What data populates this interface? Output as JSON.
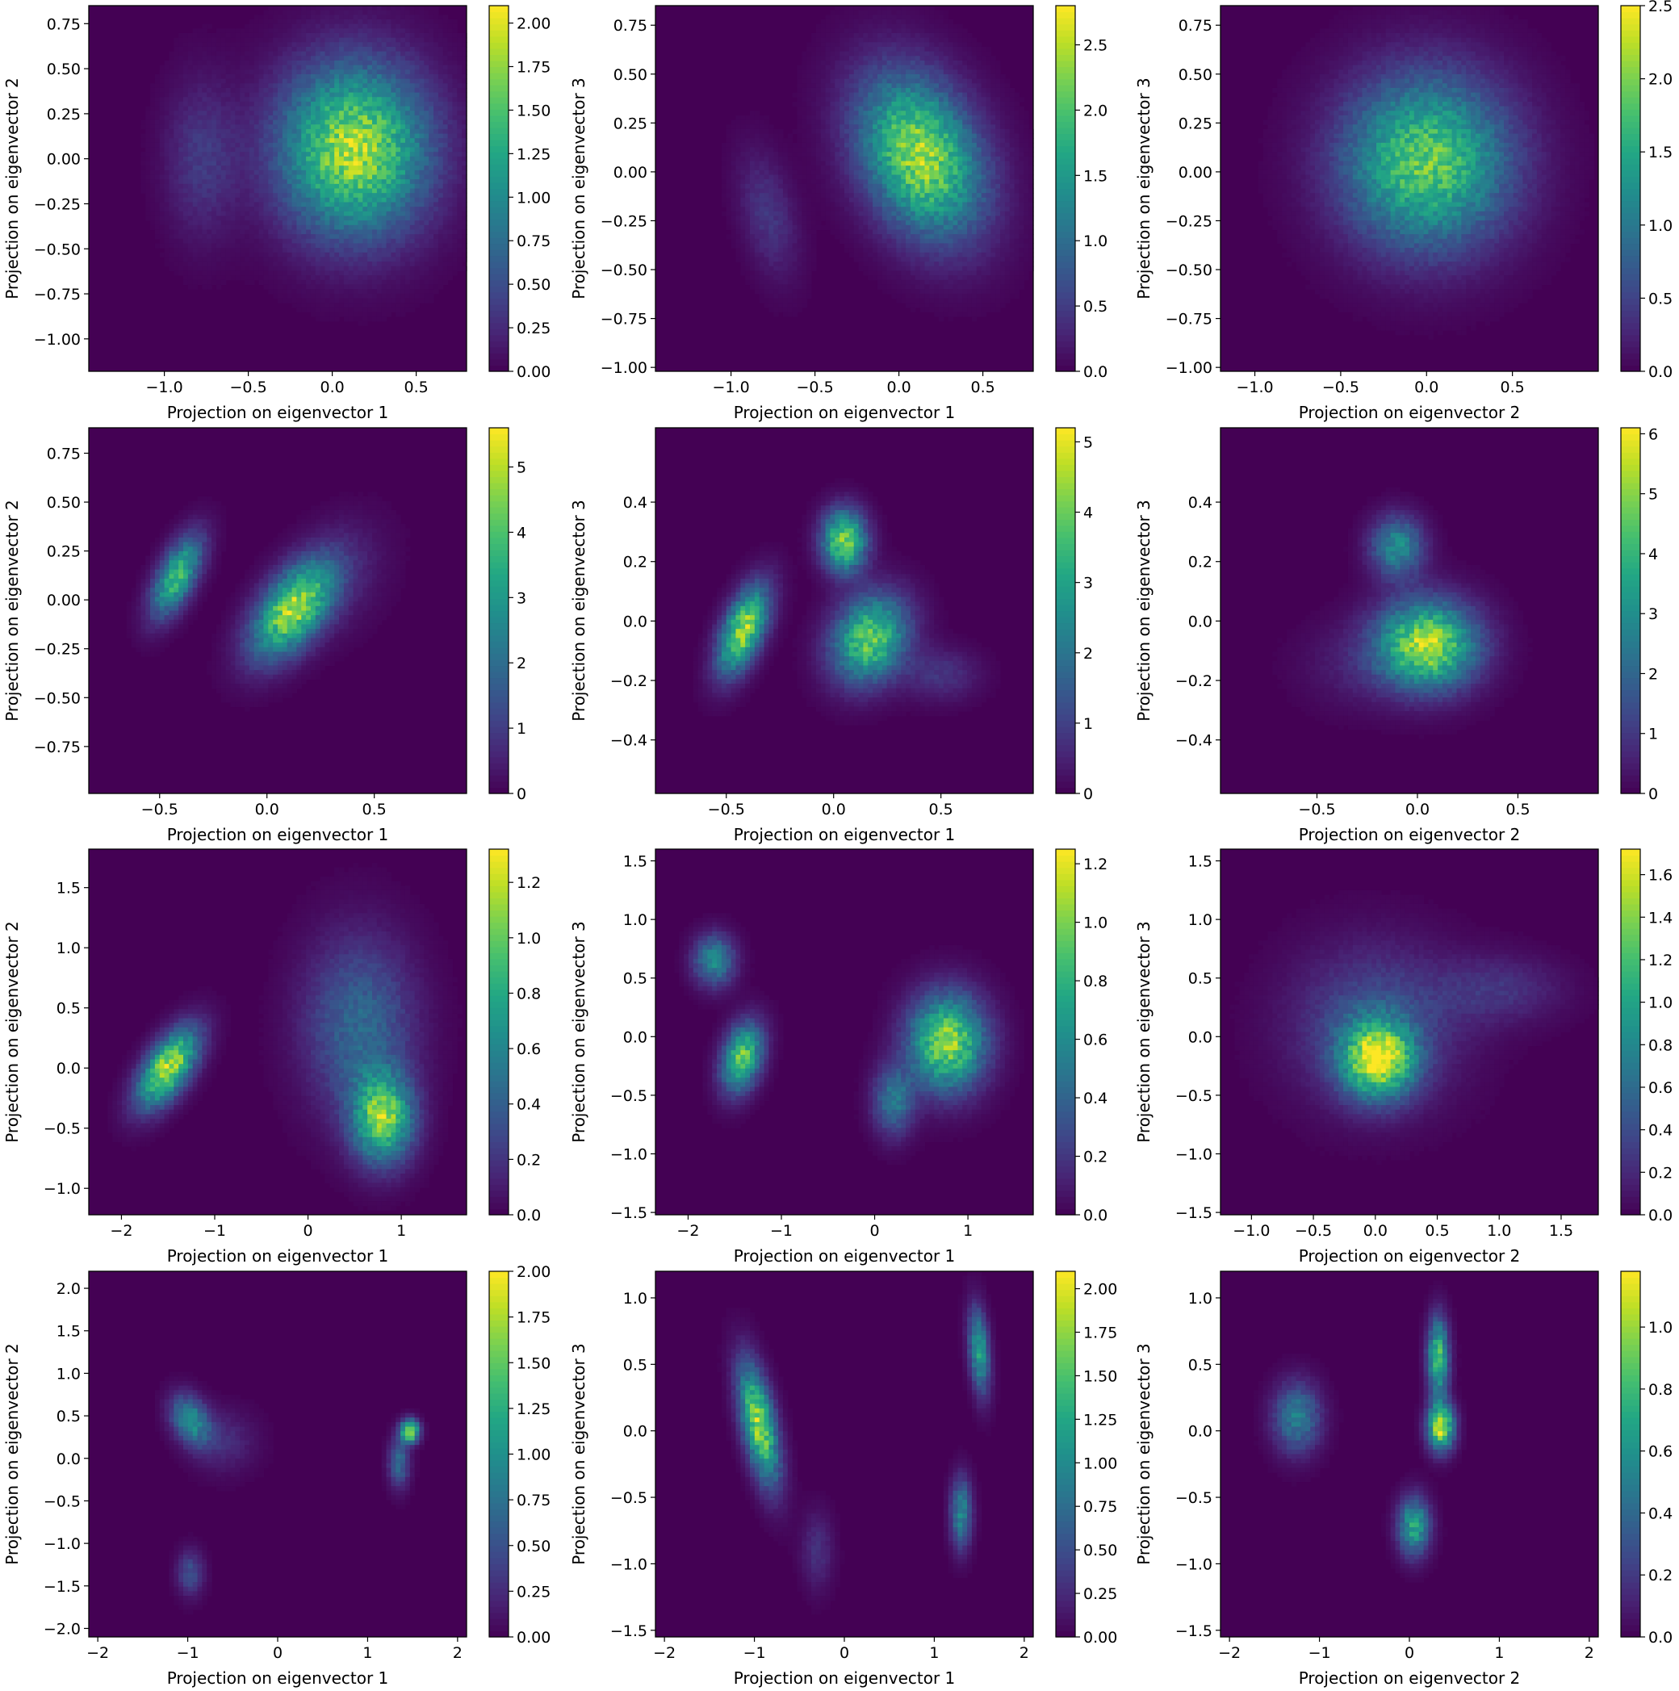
{
  "chart_data": [
    {
      "type": "heatmap",
      "xlabel": "Projection on eigenvector 1",
      "ylabel": "Projection on eigenvector 2",
      "xlim": [
        -1.45,
        0.8
      ],
      "ylim": [
        -1.18,
        0.85
      ],
      "xticks": [
        -1.0,
        -0.5,
        0.0,
        0.5
      ],
      "yticks": [
        -1.0,
        -0.75,
        -0.5,
        -0.25,
        0.0,
        0.25,
        0.5,
        0.75
      ],
      "cbar": {
        "min": 0,
        "max": 2.1,
        "ticks": [
          0.0,
          0.25,
          0.5,
          0.75,
          1.0,
          1.25,
          1.5,
          1.75,
          2.0
        ],
        "decimals": 2
      },
      "clusters": [
        {
          "x": 0.13,
          "y": 0.05,
          "sx": 0.3,
          "sy": 0.32,
          "rho": 0,
          "amp": 1.85
        },
        {
          "x": -0.78,
          "y": 0.0,
          "sx": 0.15,
          "sy": 0.3,
          "rho": 0,
          "amp": 0.35
        }
      ]
    },
    {
      "type": "heatmap",
      "xlabel": "Projection on eigenvector 1",
      "ylabel": "Projection on eigenvector 3",
      "xlim": [
        -1.45,
        0.8
      ],
      "ylim": [
        -1.02,
        0.85
      ],
      "xticks": [
        -1.0,
        -0.5,
        0.0,
        0.5
      ],
      "yticks": [
        -1.0,
        -0.75,
        -0.5,
        -0.25,
        0.0,
        0.25,
        0.5,
        0.75
      ],
      "cbar": {
        "min": 0,
        "max": 2.8,
        "ticks": [
          0.0,
          0.5,
          1.0,
          1.5,
          2.0,
          2.5
        ],
        "decimals": 1
      },
      "clusters": [
        {
          "x": 0.13,
          "y": 0.08,
          "sx": 0.25,
          "sy": 0.28,
          "rho": -0.3,
          "amp": 2.4
        },
        {
          "x": -0.78,
          "y": -0.22,
          "sx": 0.12,
          "sy": 0.22,
          "rho": -0.4,
          "amp": 0.45
        }
      ]
    },
    {
      "type": "heatmap",
      "xlabel": "Projection on eigenvector 2",
      "ylabel": "Projection on eigenvector 3",
      "xlim": [
        -1.2,
        1.0
      ],
      "ylim": [
        -1.02,
        0.85
      ],
      "xticks": [
        -1.0,
        -0.5,
        0.0,
        0.5
      ],
      "yticks": [
        -1.0,
        -0.75,
        -0.5,
        -0.25,
        0.0,
        0.25,
        0.5,
        0.75
      ],
      "cbar": {
        "min": 0,
        "max": 2.5,
        "ticks": [
          0.0,
          0.5,
          1.0,
          1.5,
          2.0,
          2.5
        ],
        "decimals": 1
      },
      "clusters": [
        {
          "x": 0.0,
          "y": 0.05,
          "sx": 0.33,
          "sy": 0.3,
          "rho": 0,
          "amp": 1.9
        }
      ]
    },
    {
      "type": "heatmap",
      "xlabel": "Projection on eigenvector 1",
      "ylabel": "Projection on eigenvector 2",
      "xlim": [
        -0.83,
        0.93
      ],
      "ylim": [
        -0.99,
        0.88
      ],
      "xticks": [
        -0.5,
        0.0,
        0.5
      ],
      "yticks": [
        -0.75,
        -0.5,
        -0.25,
        0.0,
        0.25,
        0.5,
        0.75
      ],
      "cbar": {
        "min": 0,
        "max": 5.6,
        "ticks": [
          0,
          1,
          2,
          3,
          4,
          5
        ],
        "decimals": 0
      },
      "clusters": [
        {
          "x": 0.12,
          "y": -0.05,
          "sx": 0.13,
          "sy": 0.17,
          "rho": 0.55,
          "amp": 4.8
        },
        {
          "x": -0.42,
          "y": 0.12,
          "sx": 0.08,
          "sy": 0.14,
          "rho": 0.6,
          "amp": 3.8
        },
        {
          "x": 0.35,
          "y": 0.12,
          "sx": 0.15,
          "sy": 0.2,
          "rho": 0.3,
          "amp": 0.5
        }
      ]
    },
    {
      "type": "heatmap",
      "xlabel": "Projection on eigenvector 1",
      "ylabel": "Projection on eigenvector 3",
      "xlim": [
        -0.83,
        0.93
      ],
      "ylim": [
        -0.58,
        0.65
      ],
      "xticks": [
        -0.5,
        0.0,
        0.5
      ],
      "yticks": [
        -0.4,
        -0.2,
        0.0,
        0.2,
        0.4
      ],
      "cbar": {
        "min": 0,
        "max": 5.2,
        "ticks": [
          0,
          1,
          2,
          3,
          4,
          5
        ],
        "decimals": 0
      },
      "clusters": [
        {
          "x": -0.42,
          "y": -0.03,
          "sx": 0.08,
          "sy": 0.1,
          "rho": 0.55,
          "amp": 4.5
        },
        {
          "x": 0.05,
          "y": 0.27,
          "sx": 0.07,
          "sy": 0.07,
          "rho": 0,
          "amp": 4.3
        },
        {
          "x": 0.17,
          "y": -0.06,
          "sx": 0.12,
          "sy": 0.1,
          "rho": 0.2,
          "amp": 4.0
        },
        {
          "x": 0.5,
          "y": -0.18,
          "sx": 0.12,
          "sy": 0.06,
          "rho": 0,
          "amp": 0.8
        }
      ]
    },
    {
      "type": "heatmap",
      "xlabel": "Projection on eigenvector 2",
      "ylabel": "Projection on eigenvector 3",
      "xlim": [
        -0.98,
        0.9
      ],
      "ylim": [
        -0.58,
        0.65
      ],
      "xticks": [
        -0.5,
        0.0,
        0.5
      ],
      "yticks": [
        -0.4,
        -0.2,
        0.0,
        0.2,
        0.4
      ],
      "cbar": {
        "min": 0,
        "max": 6.1,
        "ticks": [
          0,
          1,
          2,
          3,
          4,
          5,
          6
        ],
        "decimals": 0
      },
      "clusters": [
        {
          "x": 0.05,
          "y": -0.08,
          "sx": 0.17,
          "sy": 0.1,
          "rho": 0,
          "amp": 5.4
        },
        {
          "x": -0.1,
          "y": 0.25,
          "sx": 0.09,
          "sy": 0.07,
          "rho": 0,
          "amp": 3.0
        },
        {
          "x": -0.3,
          "y": -0.15,
          "sx": 0.2,
          "sy": 0.1,
          "rho": 0,
          "amp": 0.5
        }
      ]
    },
    {
      "type": "heatmap",
      "xlabel": "Projection on eigenvector 1",
      "ylabel": "Projection on eigenvector 2",
      "xlim": [
        -2.35,
        1.7
      ],
      "ylim": [
        -1.22,
        1.82
      ],
      "xticks": [
        -2,
        -1,
        0,
        1
      ],
      "yticks": [
        -1.0,
        -0.5,
        0.0,
        0.5,
        1.0,
        1.5
      ],
      "cbar": {
        "min": 0,
        "max": 1.32,
        "ticks": [
          0.0,
          0.2,
          0.4,
          0.6,
          0.8,
          1.0,
          1.2
        ],
        "decimals": 1
      },
      "clusters": [
        {
          "x": -1.5,
          "y": 0.0,
          "sx": 0.22,
          "sy": 0.22,
          "rho": 0.6,
          "amp": 1.2
        },
        {
          "x": 0.8,
          "y": -0.42,
          "sx": 0.22,
          "sy": 0.25,
          "rho": 0,
          "amp": 1.05
        },
        {
          "x": 0.55,
          "y": 0.35,
          "sx": 0.4,
          "sy": 0.5,
          "rho": 0,
          "amp": 0.45
        }
      ]
    },
    {
      "type": "heatmap",
      "xlabel": "Projection on eigenvector 1",
      "ylabel": "Projection on eigenvector 3",
      "xlim": [
        -2.35,
        1.7
      ],
      "ylim": [
        -1.52,
        1.6
      ],
      "xticks": [
        -2,
        -1,
        0,
        1
      ],
      "yticks": [
        -1.5,
        -1.0,
        -0.5,
        0.0,
        0.5,
        1.0,
        1.5
      ],
      "cbar": {
        "min": 0,
        "max": 1.25,
        "ticks": [
          0.0,
          0.2,
          0.4,
          0.6,
          0.8,
          1.0,
          1.2
        ],
        "decimals": 1
      },
      "clusters": [
        {
          "x": 0.78,
          "y": -0.05,
          "sx": 0.28,
          "sy": 0.28,
          "rho": 0,
          "amp": 1.05
        },
        {
          "x": -1.42,
          "y": -0.18,
          "sx": 0.15,
          "sy": 0.2,
          "rho": 0.3,
          "amp": 0.95
        },
        {
          "x": -1.72,
          "y": 0.65,
          "sx": 0.15,
          "sy": 0.15,
          "rho": 0,
          "amp": 0.6
        },
        {
          "x": 0.2,
          "y": -0.55,
          "sx": 0.15,
          "sy": 0.2,
          "rho": 0,
          "amp": 0.5
        }
      ]
    },
    {
      "type": "heatmap",
      "xlabel": "Projection on eigenvector 2",
      "ylabel": "Projection on eigenvector 3",
      "xlim": [
        -1.25,
        1.8
      ],
      "ylim": [
        -1.52,
        1.6
      ],
      "xticks": [
        -1.0,
        -0.5,
        0.0,
        0.5,
        1.0,
        1.5
      ],
      "yticks": [
        -1.5,
        -1.0,
        -0.5,
        0.0,
        0.5,
        1.0,
        1.5
      ],
      "cbar": {
        "min": 0,
        "max": 1.72,
        "ticks": [
          0.0,
          0.2,
          0.4,
          0.6,
          0.8,
          1.0,
          1.2,
          1.4,
          1.6
        ],
        "decimals": 1
      },
      "clusters": [
        {
          "x": 0.02,
          "y": -0.2,
          "sx": 0.2,
          "sy": 0.22,
          "rho": 0,
          "amp": 1.5
        },
        {
          "x": 0.0,
          "y": 0.1,
          "sx": 0.45,
          "sy": 0.45,
          "rho": 0,
          "amp": 0.45
        },
        {
          "x": 1.0,
          "y": 0.4,
          "sx": 0.35,
          "sy": 0.2,
          "rho": 0,
          "amp": 0.25
        }
      ]
    },
    {
      "type": "heatmap",
      "xlabel": "Projection on eigenvector 1",
      "ylabel": "Projection on eigenvector 2",
      "xlim": [
        -2.1,
        2.1
      ],
      "ylim": [
        -2.1,
        2.2
      ],
      "xticks": [
        -2,
        -1,
        0,
        1,
        2
      ],
      "yticks": [
        -2.0,
        -1.5,
        -1.0,
        -0.5,
        0.0,
        0.5,
        1.0,
        1.5,
        2.0
      ],
      "cbar": {
        "min": 0,
        "max": 2.0,
        "ticks": [
          0.0,
          0.25,
          0.5,
          0.75,
          1.0,
          1.25,
          1.5,
          1.75,
          2.0
        ],
        "decimals": 2
      },
      "clusters": [
        {
          "x": 1.47,
          "y": 0.32,
          "sx": 0.07,
          "sy": 0.09,
          "rho": 0,
          "amp": 1.9
        },
        {
          "x": 1.35,
          "y": -0.05,
          "sx": 0.08,
          "sy": 0.2,
          "rho": 0,
          "amp": 0.7
        },
        {
          "x": -0.97,
          "y": 0.45,
          "sx": 0.15,
          "sy": 0.2,
          "rho": -0.3,
          "amp": 1.0
        },
        {
          "x": -0.97,
          "y": -1.35,
          "sx": 0.1,
          "sy": 0.18,
          "rho": 0,
          "amp": 0.5
        },
        {
          "x": -0.6,
          "y": 0.2,
          "sx": 0.25,
          "sy": 0.25,
          "rho": 0,
          "amp": 0.25
        }
      ]
    },
    {
      "type": "heatmap",
      "xlabel": "Projection on eigenvector 1",
      "ylabel": "Projection on eigenvector 3",
      "xlim": [
        -2.1,
        2.1
      ],
      "ylim": [
        -1.55,
        1.2
      ],
      "xticks": [
        -2,
        -1,
        0,
        1,
        2
      ],
      "yticks": [
        -1.5,
        -1.0,
        -0.5,
        0.0,
        0.5,
        1.0
      ],
      "cbar": {
        "min": 0,
        "max": 2.1,
        "ticks": [
          0.0,
          0.25,
          0.5,
          0.75,
          1.0,
          1.25,
          1.5,
          1.75,
          2.0
        ],
        "decimals": 2
      },
      "clusters": [
        {
          "x": -0.95,
          "y": 0.05,
          "sx": 0.15,
          "sy": 0.3,
          "rho": -0.55,
          "amp": 1.8
        },
        {
          "x": 1.5,
          "y": 0.6,
          "sx": 0.08,
          "sy": 0.22,
          "rho": -0.3,
          "amp": 1.2
        },
        {
          "x": 1.3,
          "y": -0.62,
          "sx": 0.08,
          "sy": 0.18,
          "rho": 0,
          "amp": 1.0
        },
        {
          "x": -0.3,
          "y": -0.9,
          "sx": 0.12,
          "sy": 0.2,
          "rho": 0,
          "amp": 0.3
        }
      ]
    },
    {
      "type": "heatmap",
      "xlabel": "Projection on eigenvector 2",
      "ylabel": "Projection on eigenvector 3",
      "xlim": [
        -2.1,
        2.1
      ],
      "ylim": [
        -1.55,
        1.2
      ],
      "xticks": [
        -2,
        -1,
        0,
        1,
        2
      ],
      "yticks": [
        -1.5,
        -1.0,
        -0.5,
        0.0,
        0.5,
        1.0
      ],
      "cbar": {
        "min": 0,
        "max": 1.18,
        "ticks": [
          0.0,
          0.2,
          0.4,
          0.6,
          0.8,
          1.0
        ],
        "decimals": 1
      },
      "clusters": [
        {
          "x": 0.35,
          "y": 0.03,
          "sx": 0.1,
          "sy": 0.12,
          "rho": 0,
          "amp": 1.1
        },
        {
          "x": 0.32,
          "y": 0.55,
          "sx": 0.08,
          "sy": 0.2,
          "rho": 0,
          "amp": 0.85
        },
        {
          "x": 0.05,
          "y": -0.72,
          "sx": 0.12,
          "sy": 0.15,
          "rho": 0,
          "amp": 0.7
        },
        {
          "x": -1.25,
          "y": 0.1,
          "sx": 0.18,
          "sy": 0.18,
          "rho": 0,
          "amp": 0.5
        }
      ]
    }
  ]
}
